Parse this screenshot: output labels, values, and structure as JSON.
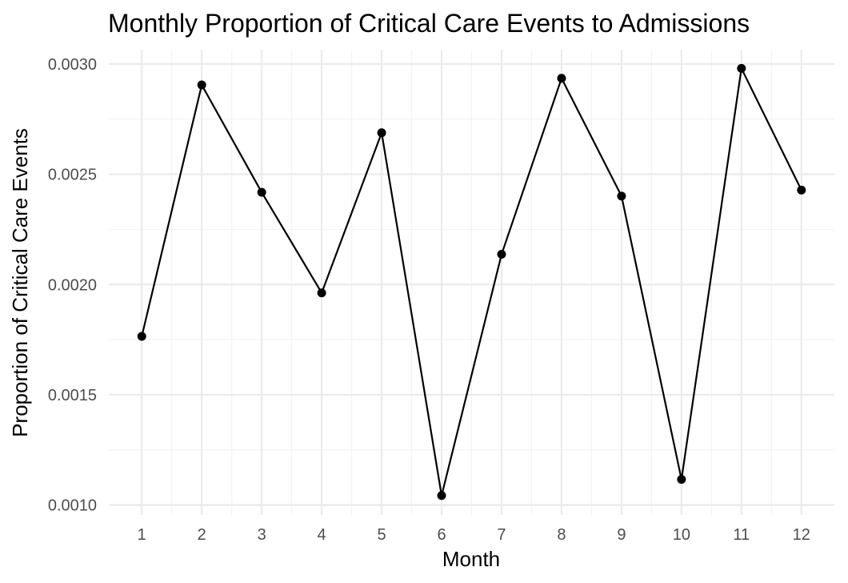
{
  "chart_data": {
    "type": "line",
    "title": "Monthly Proportion of Critical Care Events to Admissions",
    "xlabel": "Month",
    "ylabel": "Proportion of Critical Care Events",
    "x": [
      1,
      2,
      3,
      4,
      5,
      6,
      7,
      8,
      9,
      10,
      11,
      12
    ],
    "x_tick_labels": [
      "1",
      "2",
      "3",
      "4",
      "5",
      "6",
      "7",
      "8",
      "9",
      "10",
      "11",
      "12"
    ],
    "y_ticks": [
      0.001,
      0.0015,
      0.002,
      0.0025,
      0.003
    ],
    "y_tick_labels": [
      "0.0010",
      "0.0015",
      "0.0020",
      "0.0025",
      "0.0030"
    ],
    "series": [
      {
        "values": [
          0.001765,
          0.002905,
          0.002418,
          0.001962,
          0.002688,
          0.001043,
          0.002137,
          0.002935,
          0.002401,
          0.001116,
          0.00298,
          0.002428
        ],
        "color": "#000000"
      }
    ],
    "xlim": [
      0.45,
      12.55
    ],
    "ylim": [
      0.000955,
      0.003065
    ],
    "grid": true,
    "legend": "none"
  }
}
